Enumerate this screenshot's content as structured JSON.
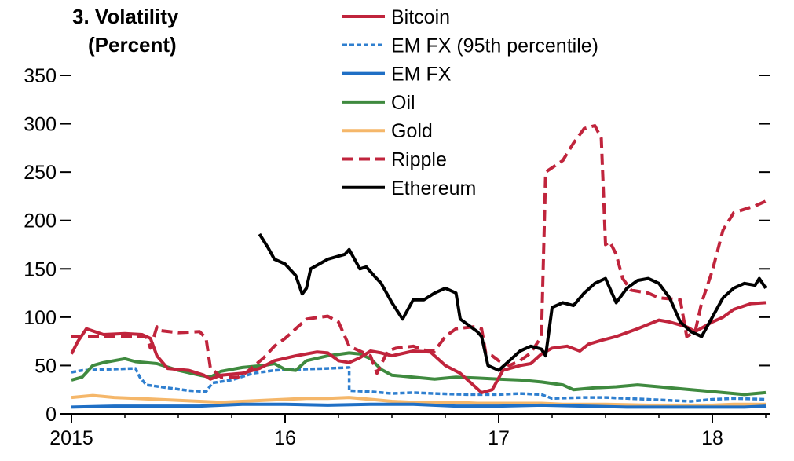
{
  "chart_data": {
    "type": "line",
    "title": "3. Volatility",
    "ylabel": "(Percent)",
    "xlim": [
      2015.0,
      2018.28
    ],
    "ylim": [
      0,
      350
    ],
    "yticks": [
      0,
      50,
      100,
      150,
      200,
      250,
      300,
      350
    ],
    "xticks": [
      {
        "value": 2015,
        "label": "2015"
      },
      {
        "value": 2016,
        "label": "16"
      },
      {
        "value": 2017,
        "label": "17"
      },
      {
        "value": 2018,
        "label": "18"
      }
    ],
    "legend_position": "top-center",
    "series": [
      {
        "name": "Bitcoin",
        "color": "#c0243c",
        "dash": "solid",
        "points": [
          [
            2015.0,
            62
          ],
          [
            2015.03,
            75
          ],
          [
            2015.07,
            88
          ],
          [
            2015.15,
            82
          ],
          [
            2015.25,
            83
          ],
          [
            2015.33,
            82
          ],
          [
            2015.37,
            78
          ],
          [
            2015.4,
            60
          ],
          [
            2015.45,
            47
          ],
          [
            2015.55,
            45
          ],
          [
            2015.62,
            40
          ],
          [
            2015.65,
            36
          ],
          [
            2015.7,
            40
          ],
          [
            2015.8,
            42
          ],
          [
            2015.88,
            47
          ],
          [
            2015.95,
            55
          ],
          [
            2016.05,
            60
          ],
          [
            2016.15,
            64
          ],
          [
            2016.2,
            63
          ],
          [
            2016.25,
            55
          ],
          [
            2016.3,
            53
          ],
          [
            2016.35,
            58
          ],
          [
            2016.4,
            65
          ],
          [
            2016.45,
            63
          ],
          [
            2016.5,
            60
          ],
          [
            2016.6,
            65
          ],
          [
            2016.68,
            64
          ],
          [
            2016.75,
            50
          ],
          [
            2016.82,
            42
          ],
          [
            2016.88,
            30
          ],
          [
            2016.92,
            22
          ],
          [
            2016.97,
            25
          ],
          [
            2017.02,
            45
          ],
          [
            2017.1,
            50
          ],
          [
            2017.15,
            52
          ],
          [
            2017.2,
            62
          ],
          [
            2017.25,
            68
          ],
          [
            2017.32,
            70
          ],
          [
            2017.38,
            65
          ],
          [
            2017.42,
            72
          ],
          [
            2017.48,
            76
          ],
          [
            2017.55,
            80
          ],
          [
            2017.65,
            88
          ],
          [
            2017.75,
            97
          ],
          [
            2017.8,
            95
          ],
          [
            2017.88,
            90
          ],
          [
            2017.92,
            85
          ],
          [
            2017.96,
            90
          ],
          [
            2018.0,
            95
          ],
          [
            2018.05,
            100
          ],
          [
            2018.1,
            108
          ],
          [
            2018.18,
            114
          ],
          [
            2018.25,
            115
          ]
        ]
      },
      {
        "name": "EM FX (95th percentile)",
        "color": "#2f7fcf",
        "dash": "dotted",
        "points": [
          [
            2015.0,
            43
          ],
          [
            2015.05,
            45
          ],
          [
            2015.15,
            46
          ],
          [
            2015.3,
            47
          ],
          [
            2015.32,
            38
          ],
          [
            2015.35,
            30
          ],
          [
            2015.45,
            27
          ],
          [
            2015.55,
            24
          ],
          [
            2015.63,
            23
          ],
          [
            2015.66,
            32
          ],
          [
            2015.75,
            35
          ],
          [
            2015.85,
            42
          ],
          [
            2015.95,
            45
          ],
          [
            2016.05,
            46
          ],
          [
            2016.2,
            47
          ],
          [
            2016.3,
            48
          ],
          [
            2016.3,
            24
          ],
          [
            2016.4,
            23
          ],
          [
            2016.5,
            21
          ],
          [
            2016.6,
            22
          ],
          [
            2016.7,
            21
          ],
          [
            2016.85,
            20
          ],
          [
            2017.0,
            20
          ],
          [
            2017.1,
            21
          ],
          [
            2017.2,
            20
          ],
          [
            2017.25,
            16
          ],
          [
            2017.4,
            17
          ],
          [
            2017.5,
            17
          ],
          [
            2017.6,
            16
          ],
          [
            2017.7,
            15
          ],
          [
            2017.8,
            14
          ],
          [
            2017.9,
            13
          ],
          [
            2018.0,
            15
          ],
          [
            2018.1,
            16
          ],
          [
            2018.25,
            15
          ]
        ]
      },
      {
        "name": "EM FX",
        "color": "#1f6fc5",
        "dash": "solid",
        "points": [
          [
            2015.0,
            7
          ],
          [
            2015.2,
            8
          ],
          [
            2015.4,
            8
          ],
          [
            2015.6,
            8
          ],
          [
            2015.8,
            10
          ],
          [
            2016.0,
            10
          ],
          [
            2016.2,
            9
          ],
          [
            2016.4,
            10
          ],
          [
            2016.6,
            10
          ],
          [
            2016.8,
            8
          ],
          [
            2017.0,
            8
          ],
          [
            2017.2,
            9
          ],
          [
            2017.4,
            8
          ],
          [
            2017.6,
            7
          ],
          [
            2017.8,
            7
          ],
          [
            2018.0,
            7
          ],
          [
            2018.15,
            7
          ],
          [
            2018.25,
            8
          ]
        ]
      },
      {
        "name": "Oil",
        "color": "#3f8a3f",
        "dash": "solid",
        "points": [
          [
            2015.0,
            35
          ],
          [
            2015.05,
            38
          ],
          [
            2015.1,
            50
          ],
          [
            2015.15,
            53
          ],
          [
            2015.25,
            57
          ],
          [
            2015.3,
            54
          ],
          [
            2015.4,
            52
          ],
          [
            2015.5,
            45
          ],
          [
            2015.6,
            40
          ],
          [
            2015.65,
            38
          ],
          [
            2015.7,
            44
          ],
          [
            2015.8,
            48
          ],
          [
            2015.9,
            50
          ],
          [
            2015.95,
            52
          ],
          [
            2016.0,
            46
          ],
          [
            2016.05,
            45
          ],
          [
            2016.1,
            55
          ],
          [
            2016.2,
            60
          ],
          [
            2016.3,
            63
          ],
          [
            2016.35,
            62
          ],
          [
            2016.4,
            57
          ],
          [
            2016.45,
            46
          ],
          [
            2016.5,
            40
          ],
          [
            2016.6,
            38
          ],
          [
            2016.7,
            36
          ],
          [
            2016.8,
            38
          ],
          [
            2016.9,
            37
          ],
          [
            2017.0,
            36
          ],
          [
            2017.1,
            35
          ],
          [
            2017.2,
            33
          ],
          [
            2017.3,
            30
          ],
          [
            2017.35,
            25
          ],
          [
            2017.45,
            27
          ],
          [
            2017.55,
            28
          ],
          [
            2017.65,
            30
          ],
          [
            2017.75,
            28
          ],
          [
            2017.85,
            26
          ],
          [
            2017.95,
            24
          ],
          [
            2018.05,
            22
          ],
          [
            2018.15,
            20
          ],
          [
            2018.25,
            22
          ]
        ]
      },
      {
        "name": "Gold",
        "color": "#f5b76a",
        "dash": "solid",
        "points": [
          [
            2015.0,
            17
          ],
          [
            2015.1,
            19
          ],
          [
            2015.2,
            17
          ],
          [
            2015.3,
            16
          ],
          [
            2015.4,
            15
          ],
          [
            2015.5,
            14
          ],
          [
            2015.6,
            13
          ],
          [
            2015.7,
            12
          ],
          [
            2015.8,
            13
          ],
          [
            2015.9,
            14
          ],
          [
            2016.0,
            15
          ],
          [
            2016.1,
            16
          ],
          [
            2016.2,
            16
          ],
          [
            2016.3,
            17
          ],
          [
            2016.4,
            15
          ],
          [
            2016.5,
            13
          ],
          [
            2016.6,
            12
          ],
          [
            2016.7,
            12
          ],
          [
            2016.8,
            12
          ],
          [
            2016.9,
            11
          ],
          [
            2017.0,
            11
          ],
          [
            2017.1,
            11
          ],
          [
            2017.2,
            11
          ],
          [
            2017.3,
            10
          ],
          [
            2017.5,
            10
          ],
          [
            2017.7,
            9
          ],
          [
            2017.9,
            9
          ],
          [
            2018.0,
            9
          ],
          [
            2018.1,
            10
          ],
          [
            2018.25,
            10
          ]
        ]
      },
      {
        "name": "Ripple",
        "color": "#c0243c",
        "dash": "dashed",
        "points": [
          [
            2015.0,
            80
          ],
          [
            2015.35,
            80
          ],
          [
            2015.37,
            68
          ],
          [
            2015.4,
            90
          ],
          [
            2015.42,
            86
          ],
          [
            2015.5,
            84
          ],
          [
            2015.6,
            85
          ],
          [
            2015.63,
            78
          ],
          [
            2015.65,
            48
          ],
          [
            2015.7,
            38
          ],
          [
            2015.78,
            38
          ],
          [
            2015.82,
            43
          ],
          [
            2015.9,
            58
          ],
          [
            2015.95,
            70
          ],
          [
            2016.0,
            78
          ],
          [
            2016.1,
            98
          ],
          [
            2016.13,
            99
          ],
          [
            2016.2,
            101
          ],
          [
            2016.25,
            95
          ],
          [
            2016.3,
            70
          ],
          [
            2016.35,
            65
          ],
          [
            2016.4,
            60
          ],
          [
            2016.43,
            42
          ],
          [
            2016.48,
            65
          ],
          [
            2016.52,
            68
          ],
          [
            2016.6,
            70
          ],
          [
            2016.65,
            66
          ],
          [
            2016.7,
            65
          ],
          [
            2016.75,
            80
          ],
          [
            2016.8,
            88
          ],
          [
            2016.88,
            90
          ],
          [
            2016.92,
            88
          ],
          [
            2016.94,
            62
          ],
          [
            2016.97,
            60
          ],
          [
            2017.0,
            55
          ],
          [
            2017.05,
            50
          ],
          [
            2017.1,
            55
          ],
          [
            2017.15,
            63
          ],
          [
            2017.2,
            80
          ],
          [
            2017.22,
            250
          ],
          [
            2017.3,
            262
          ],
          [
            2017.35,
            280
          ],
          [
            2017.4,
            295
          ],
          [
            2017.45,
            298
          ],
          [
            2017.48,
            285
          ],
          [
            2017.5,
            175
          ],
          [
            2017.52,
            178
          ],
          [
            2017.55,
            165
          ],
          [
            2017.58,
            140
          ],
          [
            2017.62,
            128
          ],
          [
            2017.7,
            125
          ],
          [
            2017.75,
            120
          ],
          [
            2017.85,
            118
          ],
          [
            2017.88,
            80
          ],
          [
            2017.92,
            85
          ],
          [
            2017.95,
            115
          ],
          [
            2018.0,
            148
          ],
          [
            2018.05,
            190
          ],
          [
            2018.1,
            208
          ],
          [
            2018.2,
            215
          ],
          [
            2018.25,
            220
          ]
        ]
      },
      {
        "name": "Ethereum",
        "color": "#000000",
        "dash": "solid",
        "points": [
          [
            2015.88,
            186
          ],
          [
            2015.92,
            172
          ],
          [
            2015.95,
            160
          ],
          [
            2016.0,
            155
          ],
          [
            2016.05,
            143
          ],
          [
            2016.08,
            124
          ],
          [
            2016.1,
            130
          ],
          [
            2016.12,
            150
          ],
          [
            2016.2,
            160
          ],
          [
            2016.28,
            165
          ],
          [
            2016.3,
            170
          ],
          [
            2016.35,
            150
          ],
          [
            2016.38,
            152
          ],
          [
            2016.42,
            142
          ],
          [
            2016.45,
            135
          ],
          [
            2016.5,
            115
          ],
          [
            2016.55,
            98
          ],
          [
            2016.6,
            118
          ],
          [
            2016.65,
            118
          ],
          [
            2016.7,
            125
          ],
          [
            2016.75,
            130
          ],
          [
            2016.8,
            125
          ],
          [
            2016.82,
            98
          ],
          [
            2016.9,
            85
          ],
          [
            2016.92,
            80
          ],
          [
            2016.95,
            50
          ],
          [
            2017.0,
            45
          ],
          [
            2017.05,
            55
          ],
          [
            2017.1,
            65
          ],
          [
            2017.15,
            70
          ],
          [
            2017.2,
            67
          ],
          [
            2017.22,
            60
          ],
          [
            2017.25,
            110
          ],
          [
            2017.3,
            115
          ],
          [
            2017.35,
            112
          ],
          [
            2017.4,
            125
          ],
          [
            2017.45,
            135
          ],
          [
            2017.5,
            140
          ],
          [
            2017.55,
            115
          ],
          [
            2017.6,
            130
          ],
          [
            2017.65,
            138
          ],
          [
            2017.7,
            140
          ],
          [
            2017.75,
            135
          ],
          [
            2017.8,
            120
          ],
          [
            2017.85,
            95
          ],
          [
            2017.9,
            85
          ],
          [
            2017.95,
            80
          ],
          [
            2018.0,
            100
          ],
          [
            2018.05,
            120
          ],
          [
            2018.1,
            130
          ],
          [
            2018.15,
            135
          ],
          [
            2018.2,
            133
          ],
          [
            2018.22,
            140
          ],
          [
            2018.25,
            130
          ]
        ]
      }
    ]
  }
}
